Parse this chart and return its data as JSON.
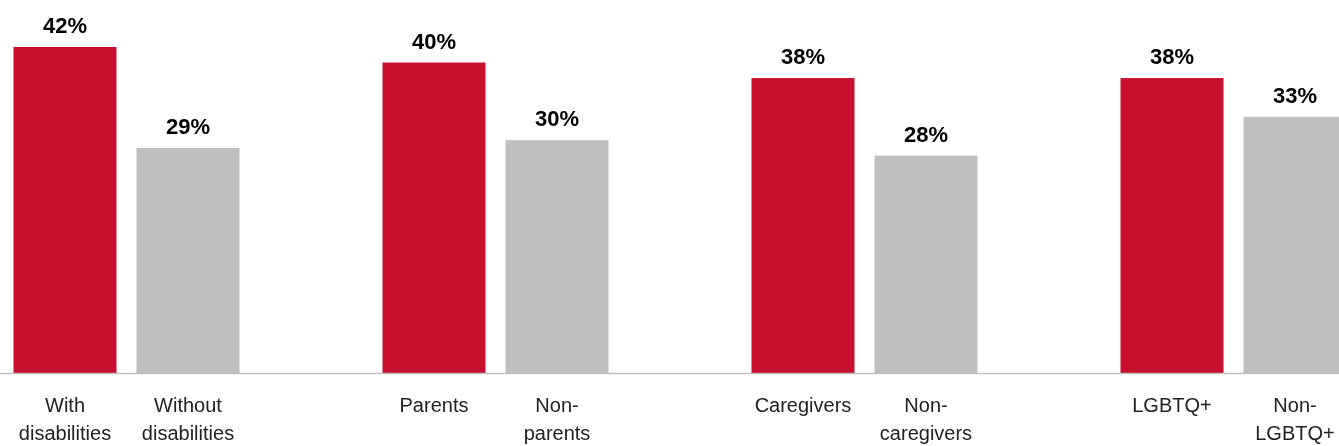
{
  "chart_data": {
    "type": "bar",
    "categories": [
      "With disabilities",
      "Without disabilities",
      "Parents",
      "Non-parents",
      "Caregivers",
      "Non-caregivers",
      "LGBTQ+",
      "Non-LGBTQ+"
    ],
    "values": [
      42,
      29,
      40,
      30,
      38,
      28,
      38,
      33
    ],
    "colors": [
      "#c8102e",
      "#bfbfbf",
      "#c8102e",
      "#bfbfbf",
      "#c8102e",
      "#bfbfbf",
      "#c8102e",
      "#bfbfbf"
    ],
    "value_labels": [
      "42%",
      "29%",
      "40%",
      "30%",
      "38%",
      "28%",
      "38%",
      "33%"
    ]
  }
}
